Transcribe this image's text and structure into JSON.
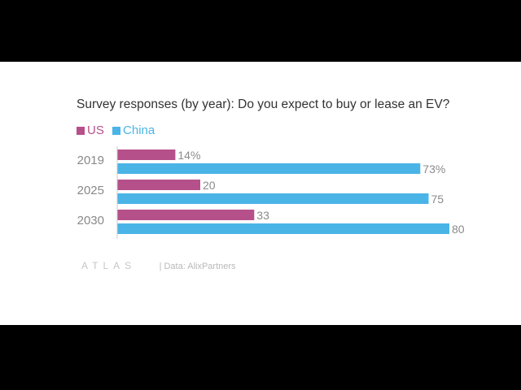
{
  "chart_data": {
    "type": "bar",
    "orientation": "horizontal",
    "title": "Survey responses (by year): Do you expect to buy or lease an EV?",
    "categories": [
      "2019",
      "2025",
      "2030"
    ],
    "series": [
      {
        "name": "US",
        "color": "#b5508a",
        "values": [
          14,
          20,
          33
        ],
        "labels": [
          "14%",
          "20",
          "33"
        ]
      },
      {
        "name": "China",
        "color": "#4ab4e6",
        "values": [
          73,
          75,
          80
        ],
        "labels": [
          "73%",
          "75",
          "80"
        ]
      }
    ],
    "xlim": [
      0,
      100
    ],
    "grid": false,
    "legend_position": "top-left"
  },
  "footer": {
    "logo": "ATLAS",
    "source": "| Data: AlixPartners"
  }
}
